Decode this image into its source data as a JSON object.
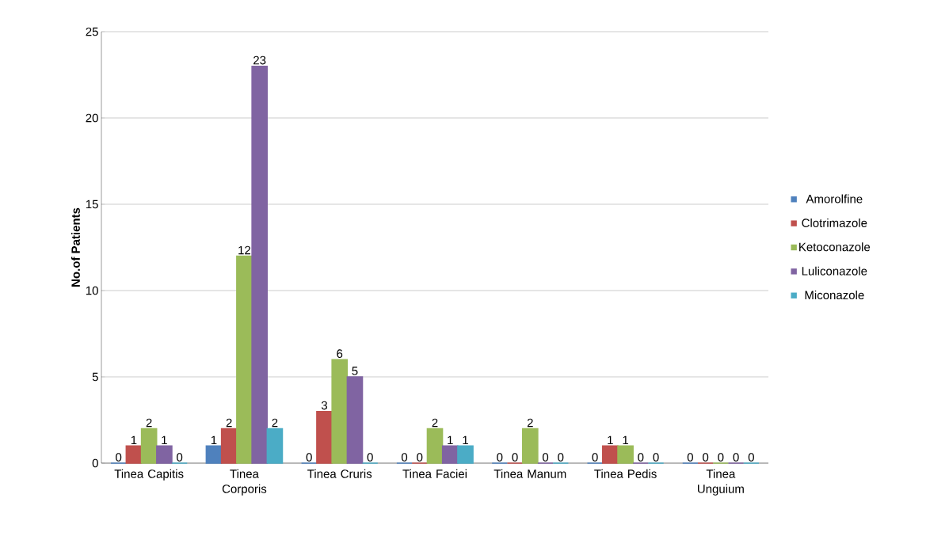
{
  "chart_data": {
    "type": "bar",
    "ylabel": "No.of Patients",
    "categories": [
      "Tinea Capitis",
      "Tinea Corporis",
      "Tinea Cruris",
      "Tinea Faciei",
      "Tinea Manum",
      "Tinea Pedis",
      "Tinea Unguium"
    ],
    "series": [
      {
        "name": "Amorolfine",
        "color": "#4f81bd",
        "values": [
          0,
          1,
          0,
          0,
          0,
          0,
          0
        ]
      },
      {
        "name": "Clotrimazole",
        "color": "#c0504d",
        "values": [
          1,
          2,
          3,
          0,
          0,
          1,
          0
        ]
      },
      {
        "name": "Ketoconazole",
        "color": "#9bbb59",
        "values": [
          2,
          12,
          6,
          2,
          2,
          1,
          0
        ]
      },
      {
        "name": "Luliconazole",
        "color": "#8064a2",
        "values": [
          1,
          23,
          5,
          1,
          0,
          0,
          0
        ]
      },
      {
        "name": "Miconazole",
        "color": "#4bacc6",
        "values": [
          0,
          2,
          0,
          1,
          0,
          0,
          0
        ]
      }
    ],
    "ylim": [
      0,
      25
    ],
    "yticks": [
      0,
      5,
      10,
      15,
      20,
      25
    ],
    "grid": "y",
    "legend": "right",
    "data_labels": true
  }
}
